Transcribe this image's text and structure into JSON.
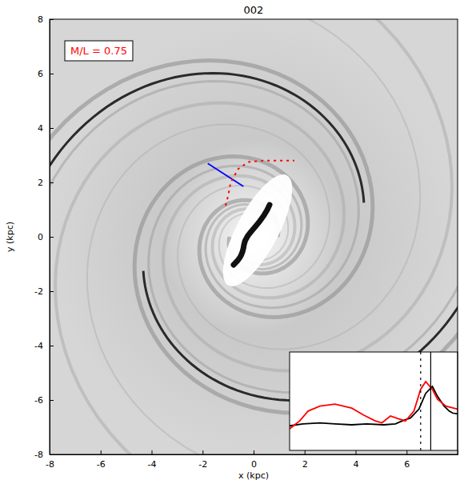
{
  "chart_data": [
    {
      "type": "line",
      "title": "002",
      "annotation": "M/L = 0.75",
      "x_label": "x (kpc)",
      "y_label": "y (kpc)",
      "xlim": [
        -8,
        8
      ],
      "ylim": [
        -8,
        8
      ],
      "xticks": [
        -8,
        -6,
        -4,
        -2,
        0,
        2,
        4,
        6
      ],
      "yticks": [
        -8,
        -6,
        -4,
        -2,
        0,
        2,
        4,
        6,
        8
      ],
      "series": [
        {
          "color": "#0000ff",
          "line_style": "solid",
          "x": [
            -1.8,
            -0.4
          ],
          "values": [
            2.7,
            1.85
          ]
        },
        {
          "color": "#ff0000",
          "line_style": "dotted",
          "x": [
            -1.1,
            -1.0,
            -0.9,
            -0.6,
            -0.2,
            0.4,
            1.0,
            1.6
          ],
          "values": [
            1.15,
            1.5,
            2.0,
            2.5,
            2.75,
            2.8,
            2.8,
            2.8
          ]
        }
      ]
    },
    {
      "type": "line",
      "xlim": [
        0,
        1
      ],
      "ylim": [
        0,
        1
      ],
      "tick_labels": false,
      "vlines": [
        {
          "x": 0.84,
          "color": "#000000",
          "line_style": "solid"
        },
        {
          "x": 0.78,
          "color": "#000000",
          "line_style": "dotted"
        }
      ],
      "series": [
        {
          "color": "#000000",
          "line_style": "solid",
          "x": [
            0.0,
            0.08,
            0.18,
            0.27,
            0.37,
            0.46,
            0.56,
            0.63,
            0.67,
            0.72,
            0.77,
            0.81,
            0.85,
            0.88,
            0.92,
            0.95,
            0.97,
            1.0
          ],
          "values": [
            0.25,
            0.27,
            0.28,
            0.27,
            0.26,
            0.27,
            0.26,
            0.27,
            0.3,
            0.33,
            0.42,
            0.58,
            0.65,
            0.55,
            0.45,
            0.4,
            0.38,
            0.37
          ]
        },
        {
          "color": "#ff0000",
          "line_style": "solid",
          "x": [
            0.0,
            0.06,
            0.11,
            0.18,
            0.27,
            0.37,
            0.44,
            0.51,
            0.55,
            0.6,
            0.65,
            0.69,
            0.74,
            0.78,
            0.81,
            0.85,
            0.88,
            0.93,
            1.0
          ],
          "values": [
            0.22,
            0.3,
            0.4,
            0.45,
            0.47,
            0.43,
            0.36,
            0.3,
            0.28,
            0.35,
            0.32,
            0.3,
            0.4,
            0.62,
            0.7,
            0.62,
            0.52,
            0.45,
            0.42
          ]
        }
      ]
    }
  ]
}
